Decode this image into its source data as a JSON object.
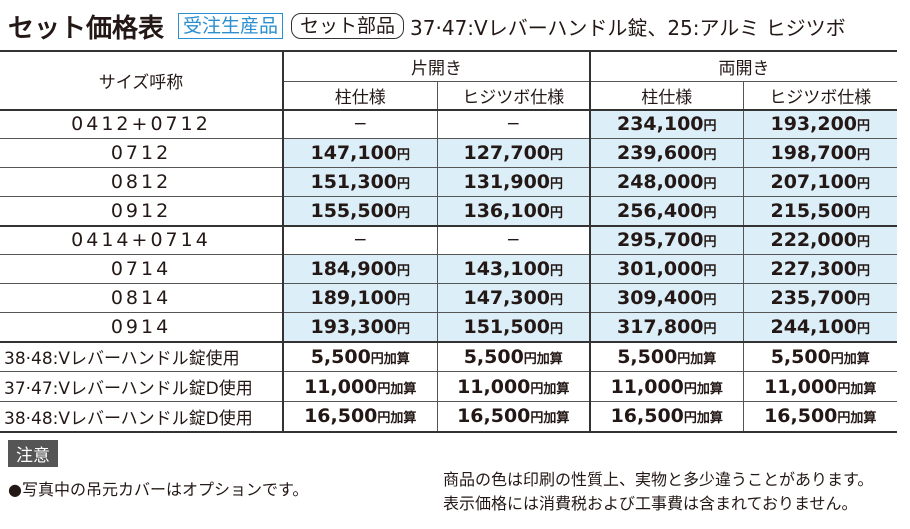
{
  "header": {
    "title": "セット価格表",
    "badge": "受注生産品",
    "tag": "セット部品",
    "description": "37·47:Vレバーハンドル錠、25:アルミ ヒジツボ"
  },
  "table": {
    "size_header": "サイズ呼称",
    "group_headers": [
      "片開き",
      "両開き"
    ],
    "sub_headers": [
      "柱仕様",
      "ヒジツボ仕様",
      "柱仕様",
      "ヒジツボ仕様"
    ],
    "groups": [
      [
        [
          "0412+0712",
          "−",
          "−",
          {
            "amount": "234,100",
            "unit": "円"
          },
          {
            "amount": "193,200",
            "unit": "円"
          }
        ],
        [
          "0712",
          {
            "amount": "147,100",
            "unit": "円"
          },
          {
            "amount": "127,700",
            "unit": "円"
          },
          {
            "amount": "239,600",
            "unit": "円"
          },
          {
            "amount": "198,700",
            "unit": "円"
          }
        ],
        [
          "0812",
          {
            "amount": "151,300",
            "unit": "円"
          },
          {
            "amount": "131,900",
            "unit": "円"
          },
          {
            "amount": "248,000",
            "unit": "円"
          },
          {
            "amount": "207,100",
            "unit": "円"
          }
        ],
        [
          "0912",
          {
            "amount": "155,500",
            "unit": "円"
          },
          {
            "amount": "136,100",
            "unit": "円"
          },
          {
            "amount": "256,400",
            "unit": "円"
          },
          {
            "amount": "215,500",
            "unit": "円"
          }
        ]
      ],
      [
        [
          "0414+0714",
          "−",
          "−",
          {
            "amount": "295,700",
            "unit": "円"
          },
          {
            "amount": "222,000",
            "unit": "円"
          }
        ],
        [
          "0714",
          {
            "amount": "184,900",
            "unit": "円"
          },
          {
            "amount": "143,100",
            "unit": "円"
          },
          {
            "amount": "301,000",
            "unit": "円"
          },
          {
            "amount": "227,300",
            "unit": "円"
          }
        ],
        [
          "0814",
          {
            "amount": "189,100",
            "unit": "円"
          },
          {
            "amount": "147,300",
            "unit": "円"
          },
          {
            "amount": "309,400",
            "unit": "円"
          },
          {
            "amount": "235,700",
            "unit": "円"
          }
        ],
        [
          "0914",
          {
            "amount": "193,300",
            "unit": "円"
          },
          {
            "amount": "151,500",
            "unit": "円"
          },
          {
            "amount": "317,800",
            "unit": "円"
          },
          {
            "amount": "244,100",
            "unit": "円"
          }
        ]
      ],
      [
        [
          "38·48:Vレバーハンドル錠使用",
          {
            "amount": "5,500",
            "unit": "円加算"
          },
          {
            "amount": "5,500",
            "unit": "円加算"
          },
          {
            "amount": "5,500",
            "unit": "円加算"
          },
          {
            "amount": "5,500",
            "unit": "円加算"
          }
        ],
        [
          "37·47:Vレバーハンドル錠D使用",
          {
            "amount": "11,000",
            "unit": "円加算"
          },
          {
            "amount": "11,000",
            "unit": "円加算"
          },
          {
            "amount": "11,000",
            "unit": "円加算"
          },
          {
            "amount": "11,000",
            "unit": "円加算"
          }
        ],
        [
          "38·48:Vレバーハンドル錠D使用",
          {
            "amount": "16,500",
            "unit": "円加算"
          },
          {
            "amount": "16,500",
            "unit": "円加算"
          },
          {
            "amount": "16,500",
            "unit": "円加算"
          },
          {
            "amount": "16,500",
            "unit": "円加算"
          }
        ]
      ]
    ]
  },
  "notes": {
    "label": "注意",
    "left": "●写真中の吊元カバーはオプションです。",
    "right": [
      "商品の色は印刷の性質上、実物と多少違うことがあります。",
      "表示価格には消費税および工事費は含まれておりません。"
    ]
  }
}
